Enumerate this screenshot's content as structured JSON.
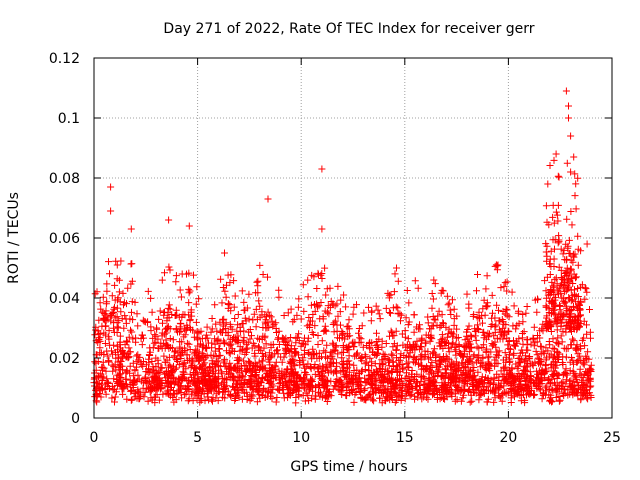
{
  "chart_data": {
    "type": "scatter",
    "title": "Day 271 of 2022, Rate Of TEC Index for receiver gerr",
    "xlabel": "GPS time / hours",
    "ylabel": "ROTI / TECUs",
    "xlim": [
      0,
      25
    ],
    "ylim": [
      0,
      0.12
    ],
    "xticks": [
      0,
      5,
      10,
      15,
      20,
      25
    ],
    "xtick_labels": [
      "0",
      "5",
      "10",
      "15",
      "20",
      "25"
    ],
    "yticks": [
      0,
      0.02,
      0.04,
      0.06,
      0.08,
      0.1,
      0.12
    ],
    "ytick_labels": [
      "0",
      "0.02",
      "0.04",
      "0.06",
      "0.08",
      "0.1",
      "0.12"
    ],
    "grid": true,
    "marker": "+",
    "series": [
      {
        "name": "ROTI",
        "color": "#ff0000",
        "notable_points": [
          {
            "x": 0.8,
            "y": 0.077
          },
          {
            "x": 0.8,
            "y": 0.069
          },
          {
            "x": 1.8,
            "y": 0.063
          },
          {
            "x": 3.6,
            "y": 0.066
          },
          {
            "x": 4.6,
            "y": 0.064
          },
          {
            "x": 6.3,
            "y": 0.055
          },
          {
            "x": 8.4,
            "y": 0.073
          },
          {
            "x": 11.0,
            "y": 0.083
          },
          {
            "x": 11.0,
            "y": 0.063
          },
          {
            "x": 14.6,
            "y": 0.05
          },
          {
            "x": 16.4,
            "y": 0.046
          },
          {
            "x": 19.5,
            "y": 0.051
          },
          {
            "x": 21.9,
            "y": 0.078
          },
          {
            "x": 22.3,
            "y": 0.088
          },
          {
            "x": 22.8,
            "y": 0.109
          },
          {
            "x": 22.9,
            "y": 0.104
          },
          {
            "x": 22.9,
            "y": 0.1
          },
          {
            "x": 23.0,
            "y": 0.094
          },
          {
            "x": 23.0,
            "y": 0.082
          },
          {
            "x": 23.8,
            "y": 0.058
          }
        ]
      }
    ]
  }
}
